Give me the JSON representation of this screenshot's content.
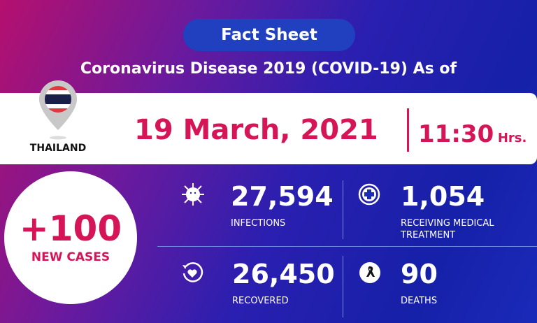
{
  "header": {
    "title": "Fact Sheet",
    "subtitle": "Coronavirus Disease 2019 (COVID-19) As of"
  },
  "banner": {
    "country": "THAILAND",
    "date": "19 March, 2021",
    "time": "11:30",
    "time_unit": "Hrs."
  },
  "new_cases": {
    "value": "+100",
    "label": "NEW CASES"
  },
  "stats": [
    {
      "value": "27,594",
      "label": "INFECTIONS",
      "icon": "virus-icon"
    },
    {
      "value": "1,054",
      "label": "RECEIVING MEDICAL TREATMENT",
      "icon": "medical-cross-icon"
    },
    {
      "value": "26,450",
      "label": "RECOVERED",
      "icon": "heart-recover-icon"
    },
    {
      "value": "90",
      "label": "DEATHS",
      "icon": "mourning-ribbon-icon"
    }
  ],
  "colors": {
    "accent": "#d61556",
    "pill": "#2040c0"
  }
}
